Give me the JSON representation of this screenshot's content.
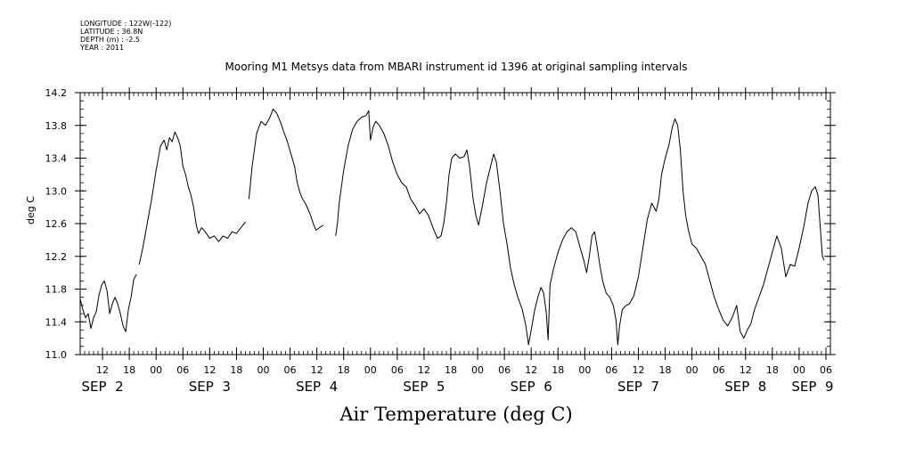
{
  "meta": {
    "longitude": "LONGITUDE : 122W(-122)",
    "latitude": "LATITUDE : 36.8N",
    "depth": "DEPTH (m) : -2.5",
    "year": "YEAR : 2011"
  },
  "chart_data": {
    "type": "line",
    "title": "Mooring M1 Metsys data from MBARI instrument id 1396 at original sampling intervals",
    "xlabel": "Air Temperature (deg C)",
    "ylabel": "deg C",
    "ylim": [
      11.0,
      14.2
    ],
    "yticks": [
      "11.0",
      "11.4",
      "11.8",
      "12.2",
      "12.6",
      "13.0",
      "13.4",
      "13.8",
      "14.2"
    ],
    "xlim_hours": [
      7,
      175
    ],
    "hour_ticks": [
      {
        "h": 12,
        "label": "12"
      },
      {
        "h": 18,
        "label": "18"
      },
      {
        "h": 24,
        "label": "00"
      },
      {
        "h": 30,
        "label": "06"
      },
      {
        "h": 36,
        "label": "12"
      },
      {
        "h": 42,
        "label": "18"
      },
      {
        "h": 48,
        "label": "00"
      },
      {
        "h": 54,
        "label": "06"
      },
      {
        "h": 60,
        "label": "12"
      },
      {
        "h": 66,
        "label": "18"
      },
      {
        "h": 72,
        "label": "00"
      },
      {
        "h": 78,
        "label": "06"
      },
      {
        "h": 84,
        "label": "12"
      },
      {
        "h": 90,
        "label": "18"
      },
      {
        "h": 96,
        "label": "00"
      },
      {
        "h": 102,
        "label": "06"
      },
      {
        "h": 108,
        "label": "12"
      },
      {
        "h": 114,
        "label": "18"
      },
      {
        "h": 120,
        "label": "00"
      },
      {
        "h": 126,
        "label": "06"
      },
      {
        "h": 132,
        "label": "12"
      },
      {
        "h": 138,
        "label": "18"
      },
      {
        "h": 144,
        "label": "00"
      },
      {
        "h": 150,
        "label": "06"
      },
      {
        "h": 156,
        "label": "12"
      },
      {
        "h": 162,
        "label": "18"
      },
      {
        "h": 168,
        "label": "00"
      },
      {
        "h": 174,
        "label": "06"
      }
    ],
    "day_labels": [
      {
        "h": 12,
        "label": "SEP  2"
      },
      {
        "h": 36,
        "label": "SEP  3"
      },
      {
        "h": 60,
        "label": "SEP  4"
      },
      {
        "h": 84,
        "label": "SEP  5"
      },
      {
        "h": 108,
        "label": "SEP  6"
      },
      {
        "h": 132,
        "label": "SEP  7"
      },
      {
        "h": 156,
        "label": "SEP  8"
      },
      {
        "h": 171,
        "label": "SEP  9"
      }
    ],
    "series": [
      {
        "segments": [
          [
            [
              7.0,
              11.68
            ],
            [
              7.6,
              11.55
            ],
            [
              8.2,
              11.45
            ],
            [
              8.8,
              11.5
            ],
            [
              9.4,
              11.32
            ],
            [
              10.0,
              11.45
            ],
            [
              10.6,
              11.52
            ],
            [
              11.2,
              11.72
            ],
            [
              11.8,
              11.85
            ],
            [
              12.4,
              11.9
            ],
            [
              13.0,
              11.78
            ],
            [
              13.6,
              11.5
            ],
            [
              14.2,
              11.62
            ],
            [
              14.8,
              11.7
            ],
            [
              15.4,
              11.62
            ],
            [
              16.0,
              11.5
            ],
            [
              16.6,
              11.35
            ],
            [
              17.2,
              11.28
            ],
            [
              17.8,
              11.55
            ],
            [
              18.4,
              11.7
            ],
            [
              19.0,
              11.92
            ],
            [
              19.6,
              11.98
            ]
          ],
          [
            [
              20.2,
              12.1
            ],
            [
              21.0,
              12.3
            ],
            [
              22.0,
              12.6
            ],
            [
              23.0,
              12.9
            ],
            [
              24.0,
              13.25
            ],
            [
              25.0,
              13.55
            ],
            [
              25.8,
              13.62
            ],
            [
              26.4,
              13.5
            ],
            [
              27.0,
              13.65
            ],
            [
              27.6,
              13.6
            ],
            [
              28.2,
              13.72
            ],
            [
              28.8,
              13.65
            ],
            [
              29.4,
              13.55
            ],
            [
              30.0,
              13.3
            ],
            [
              30.6,
              13.2
            ],
            [
              31.2,
              13.05
            ],
            [
              31.8,
              12.95
            ],
            [
              32.4,
              12.8
            ],
            [
              33.0,
              12.58
            ],
            [
              33.5,
              12.48
            ],
            [
              34.2,
              12.55
            ],
            [
              35.0,
              12.5
            ],
            [
              36.0,
              12.42
            ],
            [
              37.0,
              12.45
            ],
            [
              38.0,
              12.38
            ],
            [
              39.0,
              12.45
            ],
            [
              40.0,
              12.42
            ],
            [
              41.0,
              12.5
            ],
            [
              42.0,
              12.48
            ],
            [
              43.0,
              12.55
            ],
            [
              44.0,
              12.62
            ]
          ],
          [
            [
              44.8,
              12.9
            ],
            [
              45.5,
              13.3
            ],
            [
              46.5,
              13.7
            ],
            [
              47.5,
              13.85
            ],
            [
              48.5,
              13.8
            ],
            [
              49.5,
              13.9
            ],
            [
              50.2,
              14.0
            ],
            [
              51.0,
              13.95
            ],
            [
              51.8,
              13.85
            ],
            [
              52.6,
              13.72
            ],
            [
              53.4,
              13.6
            ],
            [
              54.2,
              13.45
            ],
            [
              55.0,
              13.3
            ],
            [
              55.6,
              13.1
            ],
            [
              56.2,
              12.98
            ],
            [
              56.8,
              12.9
            ],
            [
              57.4,
              12.85
            ],
            [
              58.0,
              12.78
            ],
            [
              58.6,
              12.7
            ],
            [
              59.2,
              12.6
            ],
            [
              59.8,
              12.52
            ],
            [
              60.6,
              12.55
            ],
            [
              61.4,
              12.58
            ]
          ],
          [
            [
              64.2,
              12.45
            ],
            [
              64.6,
              12.6
            ],
            [
              65.0,
              12.85
            ],
            [
              66.0,
              13.25
            ],
            [
              67.0,
              13.55
            ],
            [
              68.0,
              13.75
            ],
            [
              69.0,
              13.85
            ],
            [
              70.0,
              13.9
            ],
            [
              71.0,
              13.92
            ],
            [
              71.6,
              13.98
            ],
            [
              72.0,
              13.62
            ],
            [
              72.6,
              13.78
            ],
            [
              73.2,
              13.85
            ],
            [
              74.0,
              13.8
            ],
            [
              75.0,
              13.7
            ],
            [
              76.0,
              13.55
            ],
            [
              77.0,
              13.35
            ],
            [
              78.0,
              13.2
            ],
            [
              79.0,
              13.1
            ],
            [
              80.0,
              13.05
            ],
            [
              81.0,
              12.9
            ],
            [
              82.0,
              12.82
            ],
            [
              83.0,
              12.72
            ],
            [
              84.0,
              12.78
            ],
            [
              85.0,
              12.7
            ],
            [
              86.0,
              12.55
            ],
            [
              87.0,
              12.42
            ],
            [
              87.8,
              12.45
            ],
            [
              88.4,
              12.6
            ],
            [
              89.0,
              12.85
            ],
            [
              89.6,
              13.2
            ],
            [
              90.2,
              13.4
            ],
            [
              91.0,
              13.45
            ],
            [
              92.0,
              13.4
            ],
            [
              93.0,
              13.42
            ],
            [
              93.6,
              13.5
            ],
            [
              94.2,
              13.3
            ],
            [
              95.0,
              12.9
            ],
            [
              95.6,
              12.7
            ],
            [
              96.2,
              12.58
            ],
            [
              97.0,
              12.8
            ],
            [
              98.0,
              13.1
            ],
            [
              99.0,
              13.32
            ],
            [
              99.6,
              13.45
            ],
            [
              100.2,
              13.35
            ],
            [
              101.0,
              13.0
            ],
            [
              101.8,
              12.6
            ],
            [
              102.6,
              12.35
            ],
            [
              103.4,
              12.05
            ],
            [
              104.2,
              11.85
            ],
            [
              105.0,
              11.7
            ],
            [
              106.0,
              11.55
            ],
            [
              106.8,
              11.35
            ],
            [
              107.4,
              11.12
            ],
            [
              108.0,
              11.3
            ],
            [
              108.8,
              11.55
            ],
            [
              109.6,
              11.72
            ],
            [
              110.2,
              11.82
            ],
            [
              110.8,
              11.75
            ],
            [
              111.4,
              11.5
            ],
            [
              111.8,
              11.18
            ],
            [
              112.2,
              11.85
            ],
            [
              113.0,
              12.05
            ],
            [
              114.0,
              12.25
            ],
            [
              115.0,
              12.4
            ],
            [
              116.0,
              12.5
            ],
            [
              117.0,
              12.55
            ],
            [
              118.0,
              12.5
            ],
            [
              119.0,
              12.3
            ],
            [
              119.8,
              12.15
            ],
            [
              120.4,
              12.0
            ],
            [
              121.0,
              12.2
            ],
            [
              121.6,
              12.45
            ],
            [
              122.2,
              12.5
            ],
            [
              122.8,
              12.3
            ],
            [
              123.4,
              12.08
            ],
            [
              124.0,
              11.9
            ],
            [
              124.8,
              11.75
            ],
            [
              125.6,
              11.7
            ],
            [
              126.4,
              11.6
            ],
            [
              127.0,
              11.42
            ],
            [
              127.4,
              11.12
            ],
            [
              127.8,
              11.35
            ],
            [
              128.4,
              11.55
            ],
            [
              129.2,
              11.6
            ],
            [
              130.0,
              11.62
            ],
            [
              131.0,
              11.72
            ],
            [
              132.0,
              11.95
            ],
            [
              133.0,
              12.3
            ],
            [
              134.0,
              12.65
            ],
            [
              135.0,
              12.85
            ],
            [
              136.0,
              12.75
            ],
            [
              136.6,
              12.9
            ],
            [
              137.2,
              13.2
            ],
            [
              138.0,
              13.4
            ],
            [
              138.8,
              13.55
            ],
            [
              139.6,
              13.78
            ],
            [
              140.2,
              13.88
            ],
            [
              140.8,
              13.8
            ],
            [
              141.4,
              13.5
            ],
            [
              142.0,
              13.0
            ],
            [
              142.6,
              12.7
            ],
            [
              143.2,
              12.52
            ],
            [
              144.0,
              12.35
            ],
            [
              145.0,
              12.3
            ],
            [
              146.0,
              12.2
            ],
            [
              147.0,
              12.1
            ],
            [
              148.0,
              11.9
            ],
            [
              149.0,
              11.7
            ],
            [
              150.0,
              11.55
            ],
            [
              151.0,
              11.42
            ],
            [
              152.0,
              11.35
            ],
            [
              153.0,
              11.45
            ],
            [
              154.0,
              11.6
            ],
            [
              154.8,
              11.28
            ],
            [
              155.6,
              11.2
            ],
            [
              156.4,
              11.3
            ],
            [
              157.2,
              11.38
            ],
            [
              158.0,
              11.55
            ],
            [
              159.0,
              11.7
            ],
            [
              160.0,
              11.85
            ],
            [
              161.0,
              12.05
            ],
            [
              162.0,
              12.25
            ],
            [
              163.0,
              12.45
            ],
            [
              164.0,
              12.3
            ],
            [
              165.0,
              11.95
            ],
            [
              166.0,
              12.1
            ],
            [
              167.0,
              12.08
            ],
            [
              168.0,
              12.3
            ],
            [
              169.0,
              12.55
            ],
            [
              170.0,
              12.85
            ],
            [
              170.8,
              13.0
            ],
            [
              171.6,
              13.05
            ],
            [
              172.2,
              12.95
            ],
            [
              172.8,
              12.5
            ],
            [
              173.2,
              12.2
            ],
            [
              173.6,
              12.15
            ]
          ]
        ]
      }
    ]
  }
}
